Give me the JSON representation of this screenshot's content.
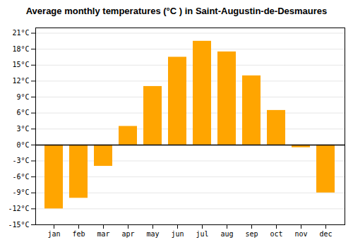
{
  "chart_data": {
    "type": "bar",
    "title": "Average monthly temperatures (°C ) in Saint-Augustin-de-Desmaures",
    "categories": [
      "jan",
      "feb",
      "mar",
      "apr",
      "may",
      "jun",
      "jul",
      "aug",
      "sep",
      "oct",
      "nov",
      "dec"
    ],
    "values": [
      -12,
      -10,
      -4,
      3.5,
      11,
      16.5,
      19.5,
      17.5,
      13,
      6.5,
      -0.5,
      -9
    ],
    "color": "#FFA500",
    "ylim": [
      -15,
      22
    ],
    "yticks": [
      {
        "value": -15,
        "label": "-15°C"
      },
      {
        "value": -12,
        "label": "-12°C"
      },
      {
        "value": -9,
        "label": "-9°C"
      },
      {
        "value": -6,
        "label": "-6°C"
      },
      {
        "value": -3,
        "label": "-3°C"
      },
      {
        "value": 0,
        "label": "0°C"
      },
      {
        "value": 3,
        "label": "3°C"
      },
      {
        "value": 6,
        "label": "6°C"
      },
      {
        "value": 9,
        "label": "9°C"
      },
      {
        "value": 12,
        "label": "12°C"
      },
      {
        "value": 15,
        "label": "15°C"
      },
      {
        "value": 18,
        "label": "18°C"
      },
      {
        "value": 21,
        "label": "21°C"
      }
    ],
    "grid": true
  }
}
